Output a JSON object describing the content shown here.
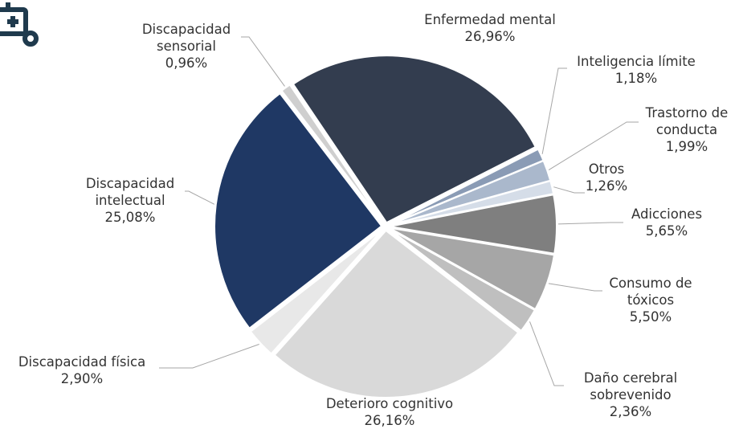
{
  "chart_data": {
    "type": "pie",
    "categories": [
      "Enfermedad mental",
      "Inteligencia límite",
      "Trastorno de conducta",
      "Otros",
      "Adicciones",
      "Consumo de tóxicos",
      "Daño cerebral sobrevenido",
      "Deterioro cognitivo",
      "Discapacidad física",
      "Discapacidad intelectual",
      "Discapacidad sensorial"
    ],
    "values": [
      26.96,
      1.18,
      1.99,
      1.26,
      5.65,
      5.5,
      2.36,
      26.16,
      2.9,
      25.08,
      0.96
    ],
    "value_labels": [
      "26,96%",
      "1,18%",
      "1,99%",
      "1,26%",
      "5,65%",
      "5,50%",
      "2,36%",
      "26,16%",
      "2,90%",
      "25,08%",
      "0,96%"
    ],
    "colors": [
      "#333d4f",
      "#8a9bb5",
      "#aab8cc",
      "#d5dde8",
      "#7f7f7f",
      "#a6a6a6",
      "#bfbfbf",
      "#d9d9d9",
      "#e8e8e8",
      "#1f3864",
      "#cfcfcf"
    ]
  }
}
